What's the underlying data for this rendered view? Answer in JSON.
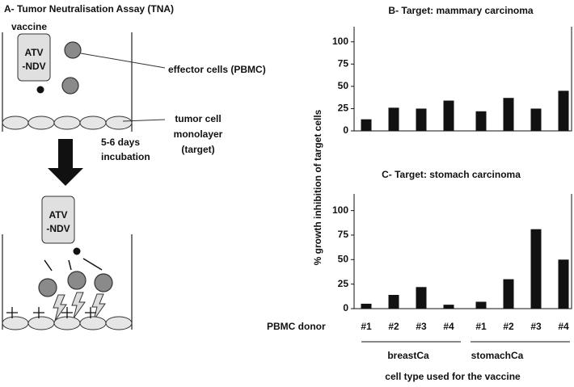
{
  "diagram": {
    "title": "A- Tumor Neutralisation Assay (TNA)",
    "vaccine_label": "vaccine",
    "vial_text": [
      "ATV",
      "-NDV"
    ],
    "effector_label": "effector cells (PBMC)",
    "target_label": [
      "tumor cell",
      "monolayer",
      "(target)"
    ],
    "incubation_label": [
      "5-6 days",
      "incubation"
    ]
  },
  "figure": {
    "y_label": "% growth inhibition of target cells",
    "groups": [
      "breastCa",
      "stomachCa"
    ],
    "group_title": "cell type used for the vaccine"
  },
  "chart_data": [
    {
      "type": "bar",
      "title": "B- Target: mammary carcinoma",
      "categories": [
        null,
        null,
        null,
        null,
        null,
        null,
        null,
        null
      ],
      "values": [
        13,
        26,
        25,
        34,
        22,
        37,
        25,
        45
      ],
      "color": "#111111",
      "ylim": [
        0,
        117
      ],
      "yticks": [
        0,
        25,
        50,
        75,
        100
      ]
    },
    {
      "type": "bar",
      "title": "C-  Target: stomach carcinoma",
      "xlabel": "PBMC donor",
      "categories": [
        "#1",
        "#2",
        "#3",
        "#4",
        "#1",
        "#2",
        "#3",
        "#4"
      ],
      "values": [
        5,
        14,
        22,
        4,
        7,
        30,
        81,
        50
      ],
      "color": "#111111",
      "ylim": [
        0,
        117
      ],
      "yticks": [
        0,
        25,
        50,
        75,
        100
      ]
    }
  ]
}
